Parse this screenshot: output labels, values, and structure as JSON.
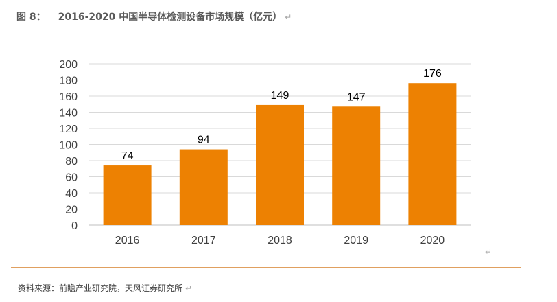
{
  "header": {
    "label": "图 8：",
    "title": "2016-2020 中国半导体检测设备市场规模（亿元）",
    "return_mark": "↵"
  },
  "source": {
    "text": "资料来源：前瞻产业研究院，天风证券研究所",
    "return_mark": "↵"
  },
  "chart_return_mark": "↵",
  "colors": {
    "bar": "#ED8102",
    "grid": "#D9D9D9",
    "rule": "#E0A060"
  },
  "chart_data": {
    "type": "bar",
    "title": "2016-2020 中国半导体检测设备市场规模（亿元）",
    "categories": [
      "2016",
      "2017",
      "2018",
      "2019",
      "2020"
    ],
    "values": [
      74,
      94,
      149,
      147,
      176
    ],
    "data_labels": [
      "74",
      "94",
      "149",
      "147",
      "176"
    ],
    "ylim": [
      0,
      200
    ],
    "ytick_labels": [
      "0",
      "20",
      "40",
      "60",
      "80",
      "100",
      "120",
      "140",
      "160",
      "180",
      "200"
    ],
    "xlabel": "",
    "ylabel": "",
    "grid": true,
    "legend": "none"
  }
}
